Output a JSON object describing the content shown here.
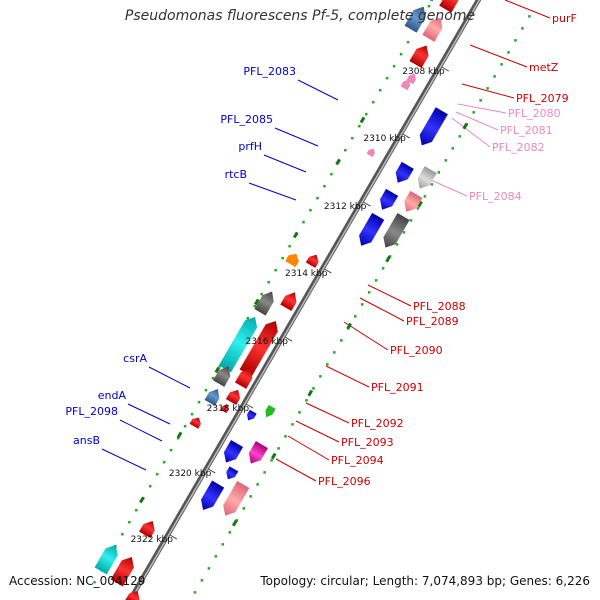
{
  "title": "Pseudomonas fluorescens Pf-5, complete genome",
  "footer": {
    "accession": "Accession: NC_004129",
    "summary": "Topology: circular; Length: 7,074,893 bp; Genes: 6,226"
  },
  "colors": {
    "forward": "#0000cc",
    "reverse": "#cc0000",
    "reverse_light": "#ee88bb",
    "backbone": "#777777",
    "gc": "#228822",
    "dots": "#22aa22"
  },
  "ticks": [
    {
      "label": "2308 kbp"
    },
    {
      "label": "2310 kbp"
    },
    {
      "label": "2312 kbp"
    },
    {
      "label": "2314 kbp"
    },
    {
      "label": "2316 kbp"
    },
    {
      "label": "2318 kbp"
    },
    {
      "label": "2320 kbp"
    },
    {
      "label": "2322 kbp"
    }
  ],
  "left_labels": [
    {
      "text": "PFL_2083"
    },
    {
      "text": "PFL_2085"
    },
    {
      "text": "prfH"
    },
    {
      "text": "rtcB"
    },
    {
      "text": "csrA"
    },
    {
      "text": "endA"
    },
    {
      "text": "PFL_2098"
    },
    {
      "text": "ansB"
    }
  ],
  "right_labels": [
    {
      "text": "purF"
    },
    {
      "text": "metZ"
    },
    {
      "text": "PFL_2079"
    },
    {
      "text": "PFL_2080"
    },
    {
      "text": "PFL_2081"
    },
    {
      "text": "PFL_2082"
    },
    {
      "text": "PFL_2084"
    },
    {
      "text": "PFL_2088"
    },
    {
      "text": "PFL_2089"
    },
    {
      "text": "PFL_2090"
    },
    {
      "text": "PFL_2091"
    },
    {
      "text": "PFL_2092"
    },
    {
      "text": "PFL_2093"
    },
    {
      "text": "PFL_2094"
    },
    {
      "text": "PFL_2096"
    }
  ]
}
